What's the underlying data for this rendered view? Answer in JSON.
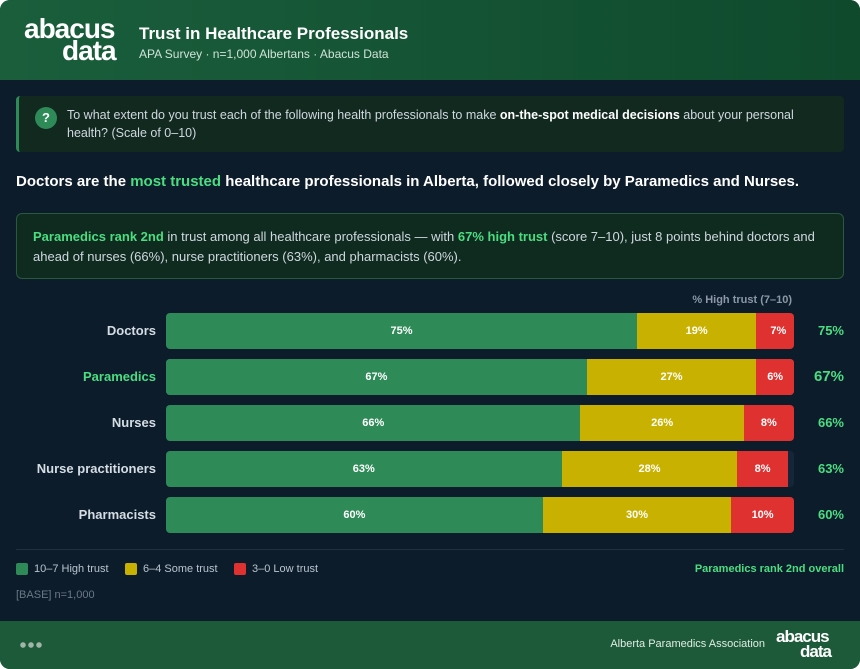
{
  "logo": [
    "abacus",
    "data"
  ],
  "header": {
    "title": "Trust in Healthcare Professionals",
    "subtitle": "APA Survey · n=1,000 Albertans · Abacus Data"
  },
  "question": {
    "icon": "?",
    "parts": [
      "To what extent do you trust each of the following health professionals to make ",
      "on-the-spot medical decisions",
      " about your personal health? (Scale of 0–10)"
    ]
  },
  "headline": {
    "parts": [
      "Doctors are the ",
      "most trusted",
      " healthcare professionals in Alberta, followed closely by Paramedics and Nurses."
    ]
  },
  "callout": {
    "parts": [
      "Paramedics rank 2nd",
      " in trust among all healthcare professionals — with ",
      "67% high trust",
      " (score 7–10), just 8 points behind doctors and ahead of nurses (66%), nurse practitioners (63%), and pharmacists (60%)."
    ]
  },
  "chart_data": {
    "type": "stacked-bar-horizontal",
    "value_header": "% High trust (7–10)",
    "categories": [
      "Doctors",
      "Paramedics",
      "Nurses",
      "Nurse practitioners",
      "Pharmacists"
    ],
    "highlight": "Paramedics",
    "xlim": [
      0,
      100
    ],
    "series": [
      {
        "name": "10–7 High trust",
        "color": "#2e8b57",
        "values": [
          75,
          67,
          66,
          63,
          60
        ],
        "value_labels": [
          "75%",
          "67%",
          "66%",
          "63%",
          "60%"
        ]
      },
      {
        "name": "6–4 Some trust",
        "color": "#c9b100",
        "values": [
          19,
          27,
          26,
          28,
          30
        ],
        "value_labels": [
          "19%",
          "27%",
          "26%",
          "28%",
          "30%"
        ]
      },
      {
        "name": "3–0 Low trust",
        "color": "#e03131",
        "values": [
          7,
          6,
          8,
          8,
          10
        ],
        "value_labels": [
          "7%",
          "6%",
          "8%",
          "8%",
          "10%"
        ]
      }
    ],
    "legend_note": "Paramedics rank 2nd overall"
  },
  "base": "[BASE] n=1,000",
  "footer": {
    "org": "Alberta Paramedics Association"
  }
}
